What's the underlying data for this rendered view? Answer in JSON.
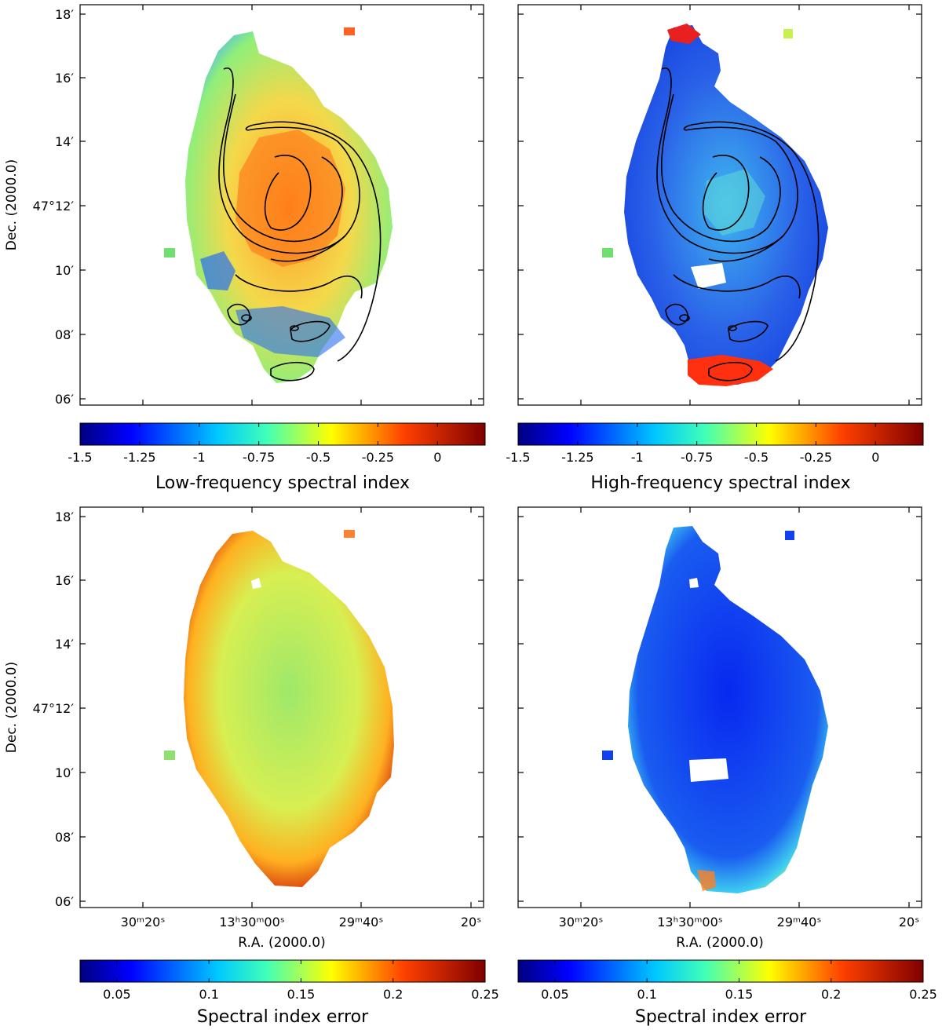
{
  "chart_data": [
    {
      "type": "heatmap",
      "panel": "top-left",
      "ylabel": "Dec. (2000.0)",
      "y_ticks": [
        "18′",
        "16′",
        "14′",
        "47°12′",
        "10′",
        "08′",
        "06′"
      ],
      "x_ticks": [],
      "contours": true,
      "colorbar": {
        "label": "Low-frequency spectral index",
        "range": [
          -1.5,
          0.2
        ],
        "ticks": [
          "-1.5",
          "-1.25",
          "-1",
          "-0.75",
          "-0.5",
          "-0.25",
          "0"
        ]
      }
    },
    {
      "type": "heatmap",
      "panel": "top-right",
      "ylabel": "",
      "y_ticks": [],
      "x_ticks": [],
      "contours": true,
      "colorbar": {
        "label": "High-frequency spectral index",
        "range": [
          -1.5,
          0.2
        ],
        "ticks": [
          "-1.5",
          "-1.25",
          "-1",
          "-0.75",
          "-0.5",
          "-0.25",
          "0"
        ]
      }
    },
    {
      "type": "heatmap",
      "panel": "bottom-left",
      "ylabel": "Dec. (2000.0)",
      "xlabel": "R.A. (2000.0)",
      "y_ticks": [
        "18′",
        "16′",
        "14′",
        "47°12′",
        "10′",
        "08′",
        "06′"
      ],
      "x_ticks": [
        "30ᵐ20ˢ",
        "13ʰ30ᵐ00ˢ",
        "29ᵐ40ˢ",
        "20ˢ"
      ],
      "contours": false,
      "colorbar": {
        "label": "Spectral index error",
        "range": [
          0.03,
          0.25
        ],
        "ticks": [
          "0.05",
          "0.1",
          "0.15",
          "0.2",
          "0.25"
        ]
      }
    },
    {
      "type": "heatmap",
      "panel": "bottom-right",
      "ylabel": "",
      "xlabel": "R.A. (2000.0)",
      "y_ticks": [],
      "x_ticks": [
        "30ᵐ20ˢ",
        "13ʰ30ᵐ00ˢ",
        "29ᵐ40ˢ",
        "20ˢ"
      ],
      "contours": false,
      "colorbar": {
        "label": "Spectral index error",
        "range": [
          0.03,
          0.25
        ],
        "ticks": [
          "0.05",
          "0.1",
          "0.15",
          "0.2",
          "0.25"
        ]
      }
    }
  ],
  "colors": {
    "jet": [
      "#00007f",
      "#0000ff",
      "#007fff",
      "#00ffff",
      "#7fff7f",
      "#ffff00",
      "#ff7f00",
      "#ff0000",
      "#7f0000"
    ],
    "contour": "#000000",
    "fill_top_left": "#f2d24a",
    "fill_top_right": "#2e6fe8",
    "fill_bottom_left": "#cfe85a",
    "fill_bottom_right": "#1248f0"
  }
}
